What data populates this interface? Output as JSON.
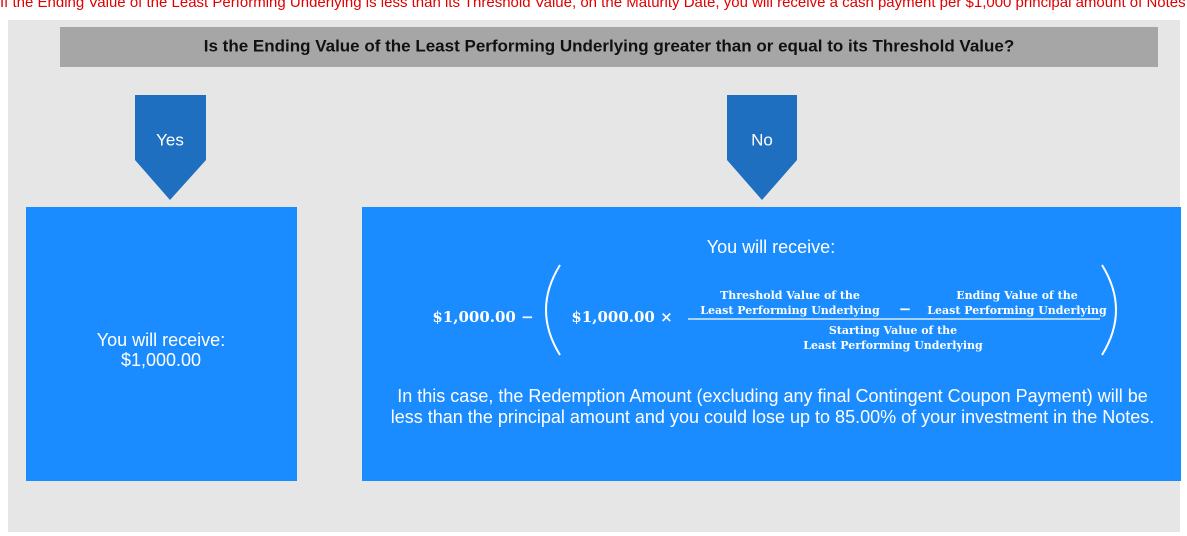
{
  "top_note": "If the Ending Value of the Least Performing Underlying is less than its Threshold Value, on the Maturity Date, you will receive a cash payment per $1,000 principal amount of Notes determined as follows:",
  "header": {
    "title": "Is the Ending Value of the Least Performing Underlying greater than or equal to its Threshold Value?"
  },
  "branches": [
    {
      "label": "Yes",
      "box": {
        "lines": [
          "You will receive:",
          "$1,000.00"
        ]
      }
    },
    {
      "label": "No",
      "box": {
        "heading": "You will receive:",
        "formula": {
          "lead": "$1,000.00 −",
          "inner": "$1,000.00 ×",
          "numerator_left": [
            "Threshold Value of the",
            "Least Performing Underlying"
          ],
          "minus": "−",
          "numerator_right": [
            "Ending Value of the",
            "Least Performing Underlying"
          ],
          "denominator": [
            "Starting Value of the",
            "Least Performing Underlying"
          ]
        },
        "paragraph": "In this case, the Redemption Amount (excluding any final Contingent Coupon Payment) will be less than the principal amount and you could lose up to 85.00% of your investment in the Notes."
      }
    }
  ]
}
